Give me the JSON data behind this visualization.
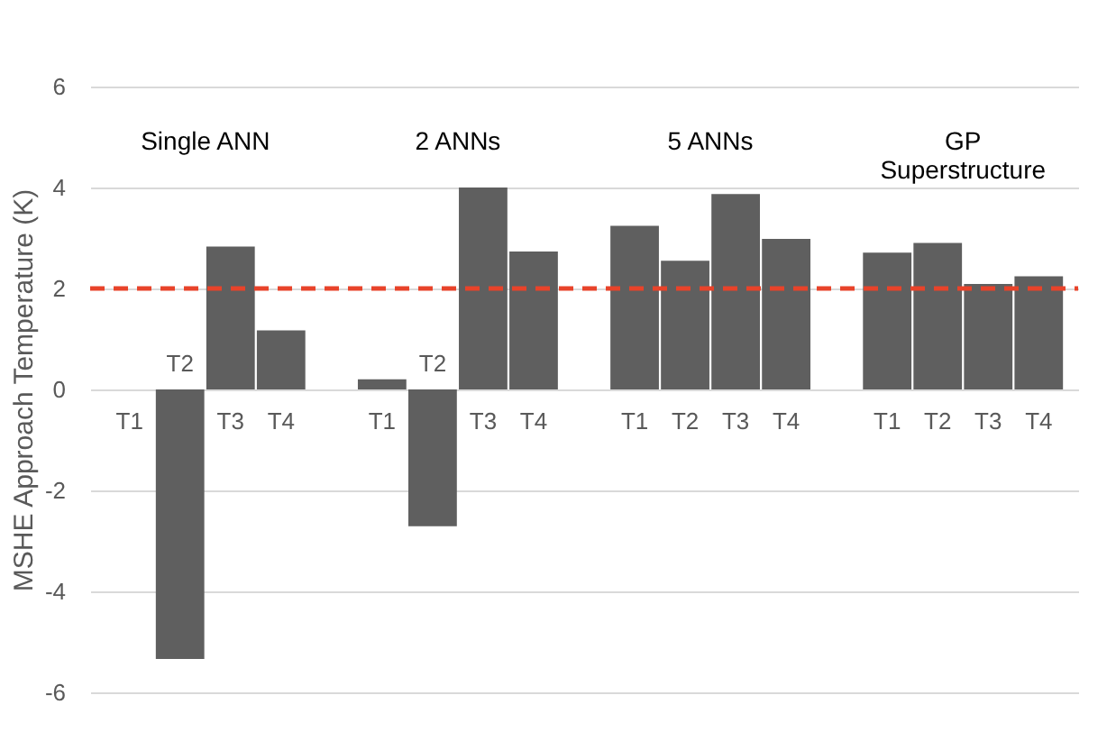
{
  "chart_data": {
    "type": "bar",
    "ylabel": "MSHE Approach Temperature (K)",
    "categories": [
      "T1",
      "T2",
      "T3",
      "T4",
      null,
      "T1",
      "T2",
      "T3",
      "T4",
      null,
      "T1",
      "T2",
      "T3",
      "T4",
      null,
      "T1",
      "T2",
      "T3",
      "T4"
    ],
    "values": [
      0,
      -5.34,
      2.83,
      1.17,
      null,
      0.2,
      -2.71,
      4.0,
      2.73,
      null,
      3.24,
      2.55,
      3.87,
      2.98,
      null,
      2.71,
      2.9,
      2.09,
      2.24
    ],
    "color": "#5f5f5f",
    "ylim": [
      -6,
      6
    ],
    "yticks": [
      -6,
      -4,
      -2,
      0,
      2,
      4,
      6
    ],
    "grid": "y",
    "ref_lines": [
      {
        "axis": "y",
        "value": 2,
        "color": "#e8432a",
        "line_style": "dashed"
      }
    ],
    "annotations": [
      "Single ANN",
      "2 ANNs",
      "5 ANNs",
      "GP\nSuperstructure"
    ]
  }
}
